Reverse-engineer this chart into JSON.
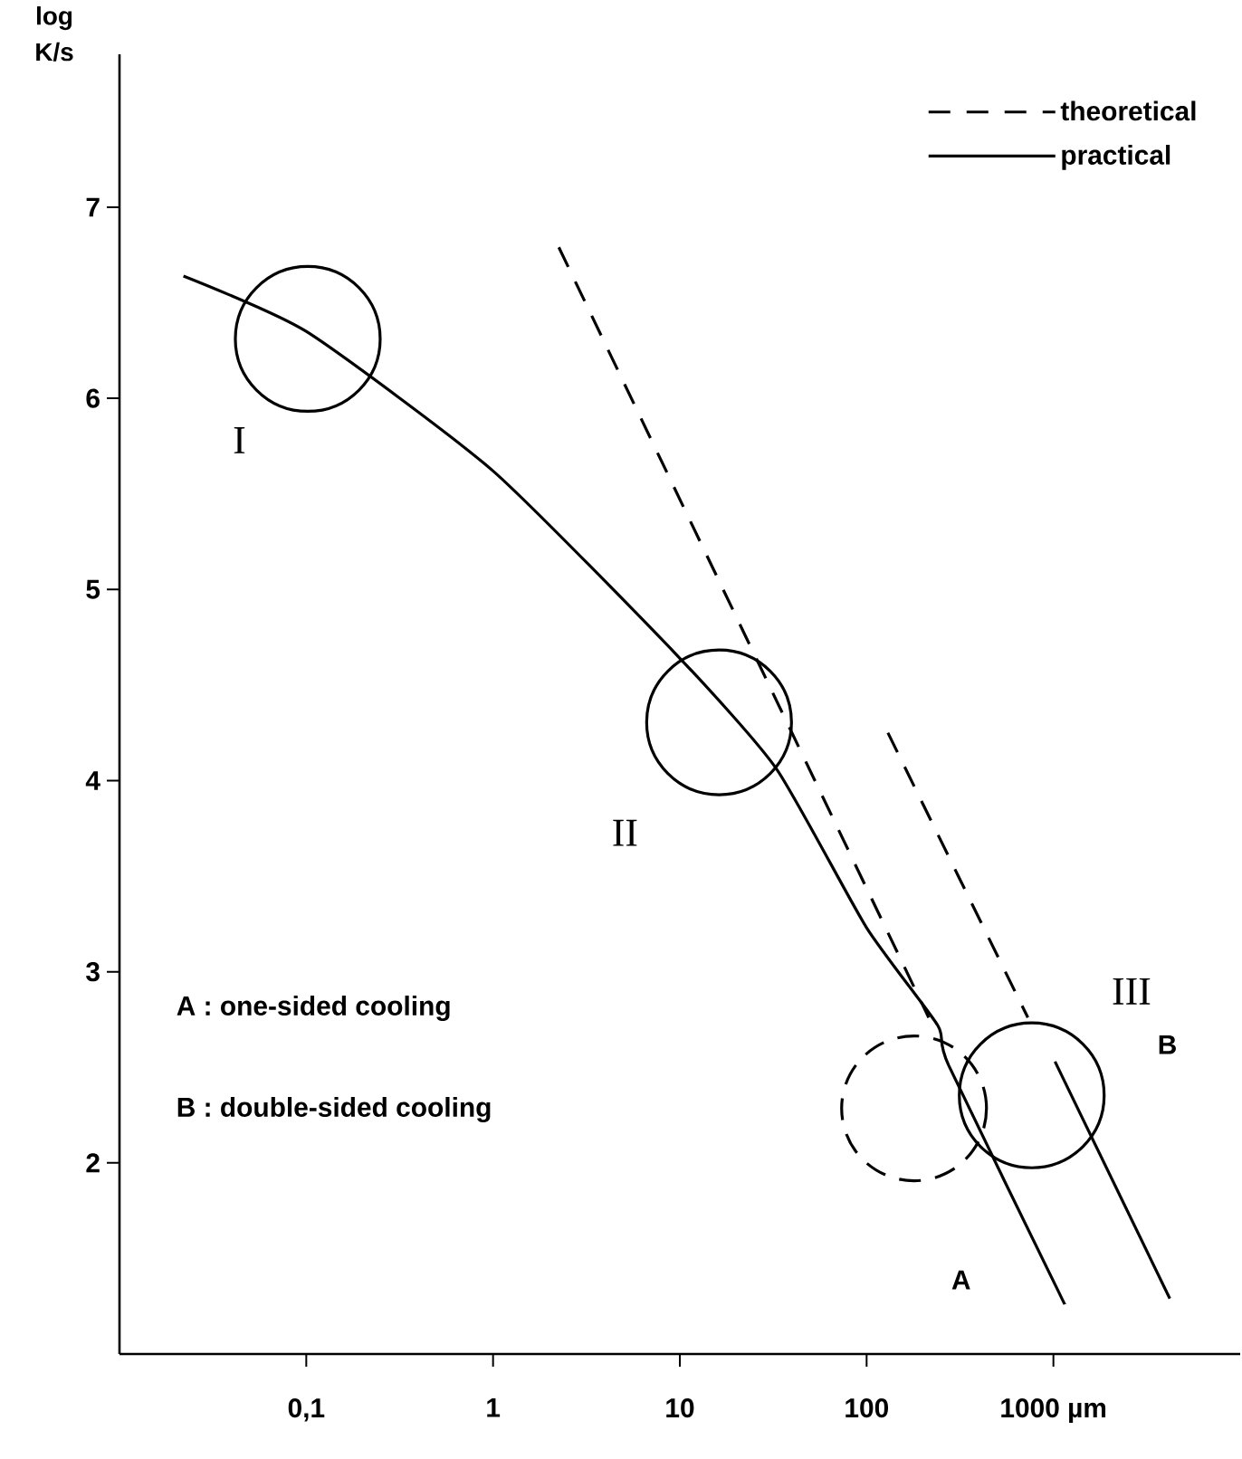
{
  "chart_data": {
    "type": "line",
    "ylabel": "log K/s",
    "xlim": [
      0.01,
      10000
    ],
    "ylim": [
      1,
      7.8
    ],
    "log": "x",
    "xticks": [
      {
        "value": 0.1,
        "label": "0,1"
      },
      1,
      10,
      100,
      {
        "value": 1000,
        "label": "1000 µm"
      }
    ],
    "yticks": [
      2,
      3,
      4,
      5,
      6,
      7
    ],
    "series": [
      {
        "name": "theoretical",
        "color": "#000000",
        "line_style": "dashed",
        "x": [
          2.25,
          215
        ],
        "values": [
          6.79,
          2.76
        ]
      },
      {
        "color": "#000000",
        "line_style": "dashed",
        "x": [
          130,
          730
        ],
        "values": [
          4.25,
          2.76
        ]
      },
      {
        "name": "practical",
        "color": "#000000",
        "line_style": "solid",
        "x": [
          0.022,
          0.1,
          1,
          10,
          33,
          100,
          240,
          275,
          1150
        ],
        "values": [
          6.64,
          6.35,
          5.62,
          4.64,
          4.06,
          3.23,
          2.72,
          2.51,
          1.26
        ]
      },
      {
        "color": "#000000",
        "line_style": "solid",
        "x": [
          1020,
          4200
        ],
        "values": [
          2.53,
          1.29
        ]
      }
    ],
    "legend": "top right",
    "grid": false,
    "annotations": [
      "I",
      "II",
      "III",
      "A",
      "B",
      "A : one-sided cooling",
      "B : double-sided cooling"
    ]
  }
}
